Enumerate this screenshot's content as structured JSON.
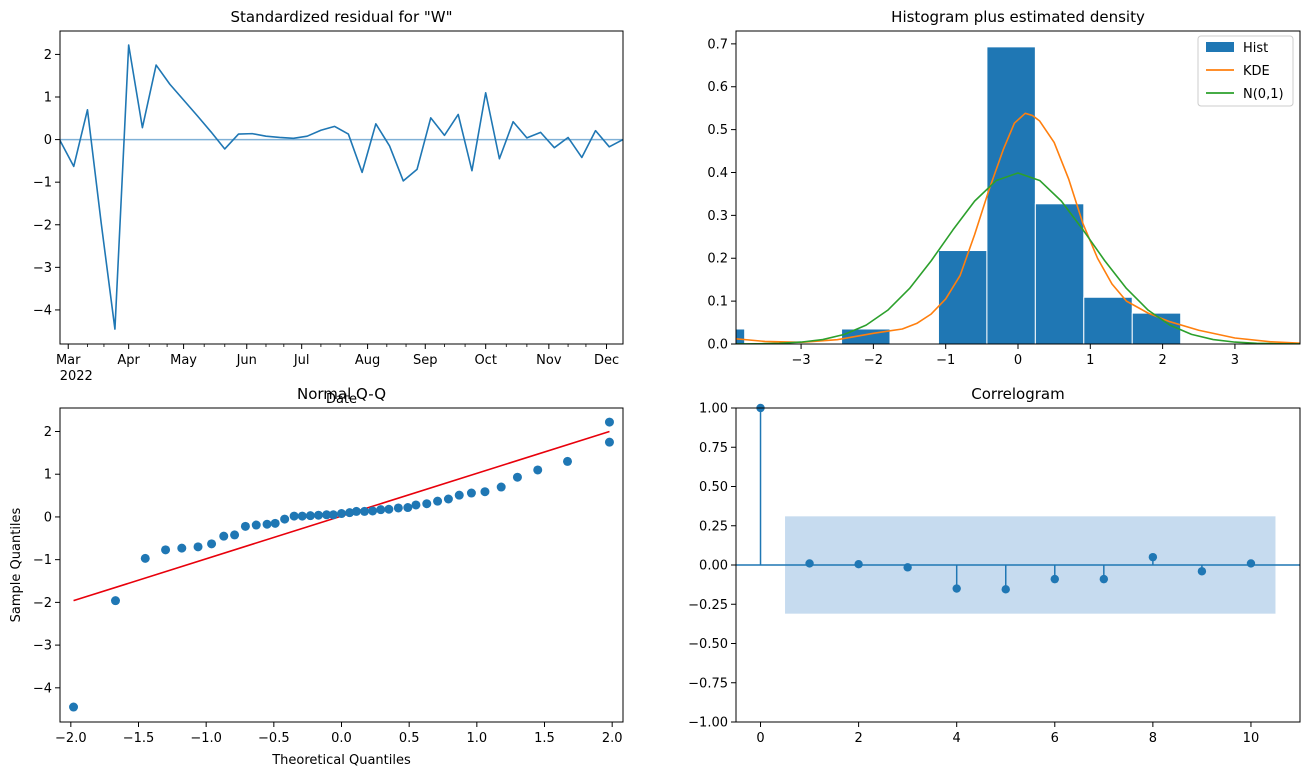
{
  "chart_data": [
    {
      "type": "line",
      "title": "Standardized residual for \"W\"",
      "xlabel": "Date",
      "ylabel": "",
      "xlim": [
        0,
        41
      ],
      "ylim": [
        -4.8,
        2.55
      ],
      "x_ticks": [
        {
          "pos": 0.6,
          "label": "Mar",
          "sublabel": "2022"
        },
        {
          "pos": 5.0,
          "label": "Apr"
        },
        {
          "pos": 9.0,
          "label": "May"
        },
        {
          "pos": 13.6,
          "label": "Jun"
        },
        {
          "pos": 17.6,
          "label": "Jul"
        },
        {
          "pos": 22.4,
          "label": "Aug"
        },
        {
          "pos": 26.6,
          "label": "Sep"
        },
        {
          "pos": 31.0,
          "label": "Oct"
        },
        {
          "pos": 35.6,
          "label": "Nov"
        },
        {
          "pos": 39.8,
          "label": "Dec"
        }
      ],
      "minor_ticks": [
        2.0,
        3.2,
        6.5,
        7.8,
        10.5,
        12.0,
        15.0,
        16.3,
        19.0,
        20.4,
        23.8,
        25.2,
        28.0,
        29.5,
        32.5,
        34.0,
        37.0,
        38.3
      ],
      "y_ticks": [
        2,
        1,
        0,
        -1,
        -2,
        -3,
        -4
      ],
      "y_tick_labels": [
        "2",
        "1",
        "0",
        "−1",
        "−2",
        "−3",
        "−4"
      ],
      "series": [
        {
          "name": "standardized residual",
          "color": "#1f77b4",
          "x": [
            0,
            1,
            2,
            3,
            4,
            5,
            6,
            7,
            8,
            9,
            10,
            11,
            12,
            13,
            14,
            15,
            16,
            17,
            18,
            19,
            20,
            21,
            22,
            23,
            24,
            25,
            26,
            27,
            28,
            29,
            30,
            31,
            32,
            33,
            34,
            35,
            36,
            37,
            38,
            39,
            40,
            41
          ],
          "values": [
            -0.02,
            -0.63,
            0.7,
            -1.96,
            -4.45,
            2.22,
            0.28,
            1.75,
            1.3,
            0.93,
            0.56,
            0.18,
            -0.22,
            0.13,
            0.14,
            0.08,
            0.05,
            0.03,
            0.08,
            0.22,
            0.31,
            0.13,
            -0.77,
            0.37,
            -0.15,
            -0.97,
            -0.7,
            0.51,
            0.1,
            0.59,
            -0.73,
            1.1,
            -0.45,
            0.42,
            0.04,
            0.17,
            -0.19,
            0.05,
            -0.42,
            0.21,
            -0.17,
            0.0
          ]
        }
      ],
      "reference_line": {
        "y": 0,
        "color": "#7fb0d6"
      }
    },
    {
      "type": "bar",
      "title": "Histogram plus estimated density",
      "xlabel": "",
      "ylabel": "",
      "xlim": [
        -3.9,
        3.9
      ],
      "ylim": [
        0,
        0.73
      ],
      "x_ticks": [
        -3,
        -2,
        -1,
        0,
        1,
        2,
        3
      ],
      "x_tick_labels": [
        "−3",
        "−2",
        "−1",
        "0",
        "1",
        "2",
        "3"
      ],
      "y_ticks": [
        0.0,
        0.1,
        0.2,
        0.3,
        0.4,
        0.5,
        0.6,
        0.7
      ],
      "y_tick_labels": [
        "0.0",
        "0.1",
        "0.2",
        "0.3",
        "0.4",
        "0.5",
        "0.6",
        "0.7"
      ],
      "bins": [
        {
          "x0": -4.45,
          "x1": -3.78,
          "value": 0.035
        },
        {
          "x0": -2.44,
          "x1": -1.77,
          "value": 0.035
        },
        {
          "x0": -1.1,
          "x1": -0.43,
          "value": 0.218
        },
        {
          "x0": -0.43,
          "x1": 0.24,
          "value": 0.693
        },
        {
          "x0": 0.24,
          "x1": 0.91,
          "value": 0.327
        },
        {
          "x0": 0.91,
          "x1": 1.58,
          "value": 0.109
        },
        {
          "x0": 1.58,
          "x1": 2.25,
          "value": 0.072
        }
      ],
      "series": [
        {
          "name": "KDE",
          "color": "#ff7f0e",
          "x": [
            -3.9,
            -3.5,
            -3.0,
            -2.5,
            -2.0,
            -1.6,
            -1.4,
            -1.2,
            -1.0,
            -0.8,
            -0.6,
            -0.4,
            -0.2,
            -0.05,
            0.1,
            0.2,
            0.3,
            0.5,
            0.7,
            0.9,
            1.1,
            1.3,
            1.5,
            1.8,
            2.1,
            2.5,
            3.0,
            3.5,
            3.9
          ],
          "values": [
            0.012,
            0.006,
            0.004,
            0.01,
            0.025,
            0.035,
            0.048,
            0.07,
            0.105,
            0.16,
            0.255,
            0.36,
            0.455,
            0.515,
            0.538,
            0.533,
            0.52,
            0.47,
            0.385,
            0.28,
            0.2,
            0.14,
            0.1,
            0.072,
            0.052,
            0.032,
            0.014,
            0.005,
            0.002
          ]
        },
        {
          "name": "N(0,1)",
          "color": "#2ca02c",
          "x": [
            -3.9,
            -3.6,
            -3.3,
            -3.0,
            -2.7,
            -2.4,
            -2.1,
            -1.8,
            -1.5,
            -1.2,
            -0.9,
            -0.6,
            -0.3,
            0,
            0.3,
            0.6,
            0.9,
            1.2,
            1.5,
            1.8,
            2.1,
            2.4,
            2.7,
            3.0,
            3.3,
            3.6,
            3.9
          ],
          "values": [
            0.0002,
            0.0006,
            0.0017,
            0.0044,
            0.0104,
            0.0224,
            0.044,
            0.079,
            0.1295,
            0.1942,
            0.2661,
            0.3332,
            0.3814,
            0.3989,
            0.3814,
            0.3332,
            0.2661,
            0.1942,
            0.1295,
            0.079,
            0.044,
            0.0224,
            0.0104,
            0.0044,
            0.0017,
            0.0006,
            0.0002
          ]
        }
      ],
      "legend": {
        "position": "upper right",
        "entries": [
          {
            "label": "Hist",
            "kind": "patch",
            "color": "#1f77b4"
          },
          {
            "label": "KDE",
            "kind": "line",
            "color": "#ff7f0e"
          },
          {
            "label": "N(0,1)",
            "kind": "line",
            "color": "#2ca02c"
          }
        ]
      }
    },
    {
      "type": "scatter",
      "title": "Normal Q-Q",
      "xlabel": "Theoretical Quantiles",
      "ylabel": "Sample Quantiles",
      "xlim": [
        -2.08,
        2.08
      ],
      "ylim": [
        -4.8,
        2.55
      ],
      "x_ticks": [
        -2.0,
        -1.5,
        -1.0,
        -0.5,
        0.0,
        0.5,
        1.0,
        1.5,
        2.0
      ],
      "x_tick_labels": [
        "−2.0",
        "−1.5",
        "−1.0",
        "−0.5",
        "0.0",
        "0.5",
        "1.0",
        "1.5",
        "2.0"
      ],
      "y_ticks": [
        2,
        1,
        0,
        -1,
        -2,
        -3,
        -4
      ],
      "y_tick_labels": [
        "2",
        "1",
        "0",
        "−1",
        "−2",
        "−3",
        "−4"
      ],
      "series": [
        {
          "name": "sample quantiles",
          "color": "#1f77b4",
          "x": [
            -1.98,
            -1.67,
            -1.45,
            -1.3,
            -1.18,
            -1.06,
            -0.96,
            -0.87,
            -0.79,
            -0.71,
            -0.63,
            -0.55,
            -0.49,
            -0.42,
            -0.35,
            -0.29,
            -0.23,
            -0.17,
            -0.11,
            -0.06,
            0.0,
            0.06,
            0.11,
            0.17,
            0.23,
            0.29,
            0.35,
            0.42,
            0.49,
            0.55,
            0.63,
            0.71,
            0.79,
            0.87,
            0.96,
            1.06,
            1.18,
            1.3,
            1.45,
            1.67,
            1.98
          ],
          "values": [
            -4.45,
            -1.96,
            -0.97,
            -0.77,
            -0.73,
            -0.7,
            -0.63,
            -0.45,
            -0.42,
            -0.22,
            -0.19,
            -0.17,
            -0.15,
            -0.05,
            0.02,
            0.02,
            0.03,
            0.04,
            0.05,
            0.05,
            0.08,
            0.1,
            0.13,
            0.13,
            0.14,
            0.17,
            0.18,
            0.21,
            0.22,
            0.28,
            0.31,
            0.37,
            0.42,
            0.51,
            0.56,
            0.59,
            0.7,
            0.93,
            1.1,
            1.3,
            1.75
          ]
        }
      ],
      "extra_point": {
        "x": 1.98,
        "y": 2.22
      },
      "reference_line": {
        "x": [
          -1.98,
          1.98
        ],
        "y": [
          -1.96,
          2.0
        ],
        "color": "#e8000b"
      }
    },
    {
      "type": "bar",
      "title": "Correlogram",
      "xlabel": "",
      "ylabel": "",
      "xlim": [
        -0.5,
        11.0
      ],
      "ylim": [
        -1.0,
        1.0
      ],
      "x_ticks": [
        0,
        2,
        4,
        6,
        8,
        10
      ],
      "x_tick_labels": [
        "0",
        "2",
        "4",
        "6",
        "8",
        "10"
      ],
      "y_ticks": [
        1.0,
        0.75,
        0.5,
        0.25,
        0.0,
        -0.25,
        -0.5,
        -0.75,
        -1.0
      ],
      "y_tick_labels": [
        "1.00",
        "0.75",
        "0.50",
        "0.25",
        "0.00",
        "−0.25",
        "−0.50",
        "−0.75",
        "−1.00"
      ],
      "lags": [
        0,
        1,
        2,
        3,
        4,
        5,
        6,
        7,
        8,
        9,
        10
      ],
      "values": [
        1.0,
        0.01,
        0.005,
        -0.015,
        -0.15,
        -0.155,
        -0.09,
        -0.09,
        0.05,
        -0.04,
        0.01
      ],
      "confidence_band": {
        "x": [
          0.5,
          10.5
        ],
        "upper": 0.31,
        "lower": -0.31,
        "color": "#c6dbef"
      },
      "color": "#1f77b4"
    }
  ]
}
